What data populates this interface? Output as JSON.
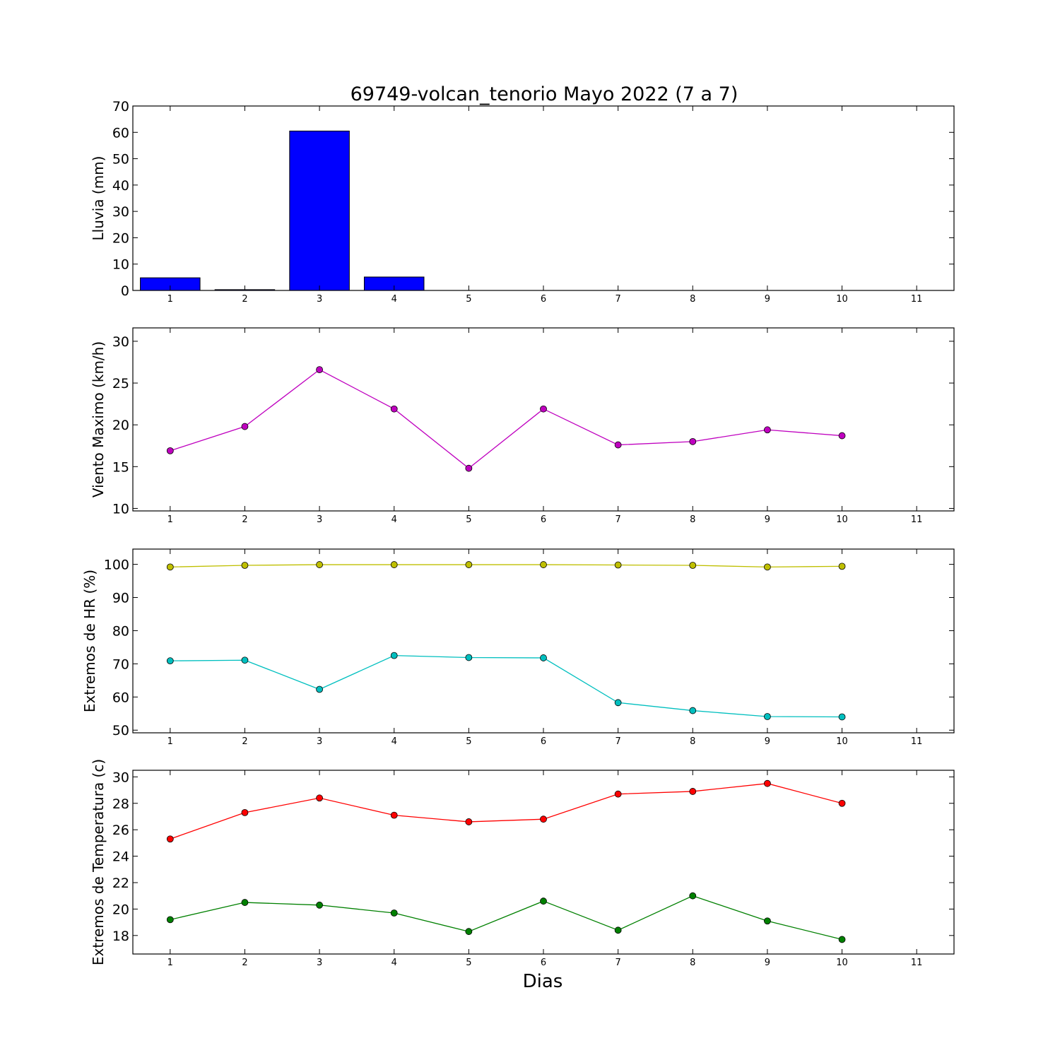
{
  "figure": {
    "title": "69749-volcan_tenorio Mayo 2022  (7 a 7)",
    "xlabel": "Dias"
  },
  "chart_data": [
    {
      "type": "bar",
      "ylabel": "Lluvia (mm)",
      "xlim": [
        0.5,
        11.5
      ],
      "ylim": [
        0,
        70
      ],
      "yticks": [
        0,
        10,
        20,
        30,
        40,
        50,
        60,
        70
      ],
      "xticks": [
        1,
        2,
        3,
        4,
        5,
        6,
        7,
        8,
        9,
        10,
        11
      ],
      "x": [
        1,
        2,
        3,
        4,
        5,
        6,
        7,
        8,
        9,
        10
      ],
      "series": [
        {
          "color": "#0000ff",
          "values": [
            4.8,
            0.3,
            60.5,
            5.1,
            0,
            0,
            0,
            0,
            0,
            0
          ]
        }
      ]
    },
    {
      "type": "line",
      "ylabel": "Viento Maximo (km/h)",
      "xlim": [
        0.5,
        11.5
      ],
      "ylim": [
        9.7,
        31.6
      ],
      "yticks": [
        10,
        15,
        20,
        25,
        30
      ],
      "xticks": [
        1,
        2,
        3,
        4,
        5,
        6,
        7,
        8,
        9,
        10,
        11
      ],
      "x": [
        1,
        2,
        3,
        4,
        5,
        6,
        7,
        8,
        9,
        10
      ],
      "series": [
        {
          "color": "#bf00bf",
          "values": [
            16.9,
            19.8,
            26.6,
            21.9,
            14.8,
            21.9,
            17.6,
            18.0,
            19.4,
            18.7
          ]
        }
      ]
    },
    {
      "type": "line",
      "ylabel": "Extremos de HR (%)",
      "xlim": [
        0.5,
        11.5
      ],
      "ylim": [
        49.2,
        104.6
      ],
      "yticks": [
        50,
        60,
        70,
        80,
        90,
        100
      ],
      "xticks": [
        1,
        2,
        3,
        4,
        5,
        6,
        7,
        8,
        9,
        10,
        11
      ],
      "x": [
        1,
        2,
        3,
        4,
        5,
        6,
        7,
        8,
        9,
        10
      ],
      "series": [
        {
          "color": "#bfbf00",
          "values": [
            99.2,
            99.7,
            99.9,
            99.9,
            99.9,
            99.9,
            99.8,
            99.7,
            99.2,
            99.4
          ]
        },
        {
          "color": "#00bfbf",
          "values": [
            70.9,
            71.1,
            62.3,
            72.5,
            71.9,
            71.8,
            58.3,
            55.9,
            54.1,
            54.0
          ]
        }
      ]
    },
    {
      "type": "line",
      "ylabel": "Extremos de Temperatura (c)",
      "xlim": [
        0.5,
        11.5
      ],
      "ylim": [
        16.6,
        30.5
      ],
      "yticks": [
        18,
        20,
        22,
        24,
        26,
        28,
        30
      ],
      "xticks": [
        1,
        2,
        3,
        4,
        5,
        6,
        7,
        8,
        9,
        10,
        11
      ],
      "x": [
        1,
        2,
        3,
        4,
        5,
        6,
        7,
        8,
        9,
        10
      ],
      "series": [
        {
          "color": "#ff0000",
          "values": [
            25.3,
            27.3,
            28.4,
            27.1,
            26.6,
            26.8,
            28.7,
            28.9,
            29.5,
            28.0
          ]
        },
        {
          "color": "#008000",
          "values": [
            19.2,
            20.5,
            20.3,
            19.7,
            18.3,
            20.6,
            18.4,
            21.0,
            19.1,
            17.7
          ]
        }
      ]
    }
  ]
}
